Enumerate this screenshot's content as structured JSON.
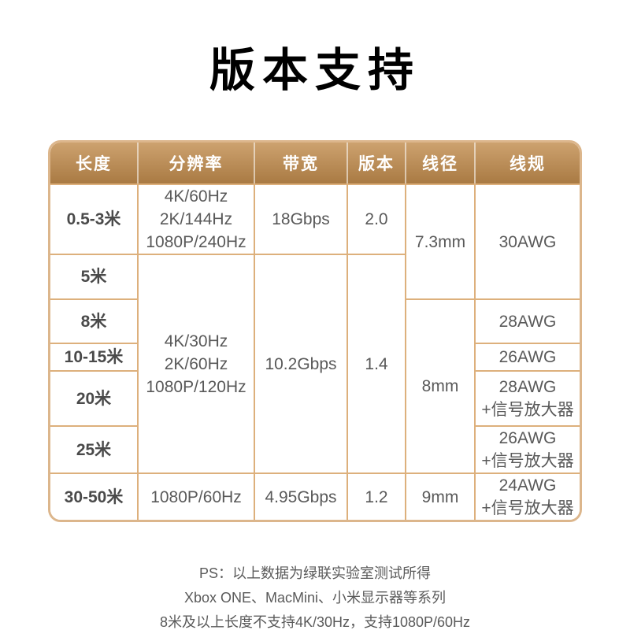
{
  "page": {
    "title": "版本支持"
  },
  "table": {
    "columns": [
      {
        "key": "length",
        "label": "长度"
      },
      {
        "key": "resolution",
        "label": "分辨率"
      },
      {
        "key": "bandwidth",
        "label": "带宽"
      },
      {
        "key": "version",
        "label": "版本"
      },
      {
        "key": "diameter",
        "label": "线径"
      },
      {
        "key": "gauge",
        "label": "线规"
      }
    ],
    "rows": [
      {
        "cells": [
          {
            "col": "length",
            "text": "0.5-3米"
          },
          {
            "col": "resolution",
            "lines": [
              "4K/60Hz",
              "2K/144Hz",
              "1080P/240Hz"
            ]
          },
          {
            "col": "bandwidth",
            "text": "18Gbps"
          },
          {
            "col": "version",
            "text": "2.0"
          },
          {
            "col": "diameter",
            "text": "7.3mm",
            "rowspan": 2
          },
          {
            "col": "gauge",
            "text": "30AWG",
            "rowspan": 2
          }
        ]
      },
      {
        "cells": [
          {
            "col": "length",
            "text": "5米"
          },
          {
            "col": "resolution",
            "lines": [
              "4K/30Hz",
              "2K/60Hz",
              "1080P/120Hz"
            ],
            "rowspan": 5
          },
          {
            "col": "bandwidth",
            "text": "10.2Gbps",
            "rowspan": 5
          },
          {
            "col": "version",
            "text": "1.4",
            "rowspan": 5
          }
        ]
      },
      {
        "cells": [
          {
            "col": "length",
            "text": "8米"
          },
          {
            "col": "diameter",
            "text": "8mm",
            "rowspan": 4
          },
          {
            "col": "gauge",
            "text": "28AWG"
          }
        ]
      },
      {
        "cells": [
          {
            "col": "length",
            "text": "10-15米"
          },
          {
            "col": "gauge",
            "text": "26AWG"
          }
        ]
      },
      {
        "cells": [
          {
            "col": "length",
            "text": "20米"
          },
          {
            "col": "gauge",
            "lines": [
              "28AWG",
              "+信号放大器"
            ]
          }
        ]
      },
      {
        "cells": [
          {
            "col": "length",
            "text": "25米"
          },
          {
            "col": "gauge",
            "lines": [
              "26AWG",
              "+信号放大器"
            ]
          }
        ]
      },
      {
        "cells": [
          {
            "col": "length",
            "text": "30-50米"
          },
          {
            "col": "resolution",
            "text": "1080P/60Hz"
          },
          {
            "col": "bandwidth",
            "text": "4.95Gbps"
          },
          {
            "col": "version",
            "text": "1.2"
          },
          {
            "col": "diameter",
            "text": "9mm"
          },
          {
            "col": "gauge",
            "lines": [
              "24AWG",
              "+信号放大器"
            ]
          }
        ]
      }
    ],
    "colors": {
      "header_top": "#cda26f",
      "header_bottom": "#a97a43",
      "border": "#ddb07c",
      "outer_border": "#dcb68c",
      "header_text": "#ffffff",
      "cell_text": "#595959",
      "length_text": "#4a4a4a"
    }
  },
  "notes": {
    "lines": [
      "PS：以上数据为绿联实验室测试所得",
      "Xbox ONE、MacMini、小米显示器等系列",
      "8米及以上长度不支持4K/30Hz，支持1080P/60Hz"
    ]
  }
}
